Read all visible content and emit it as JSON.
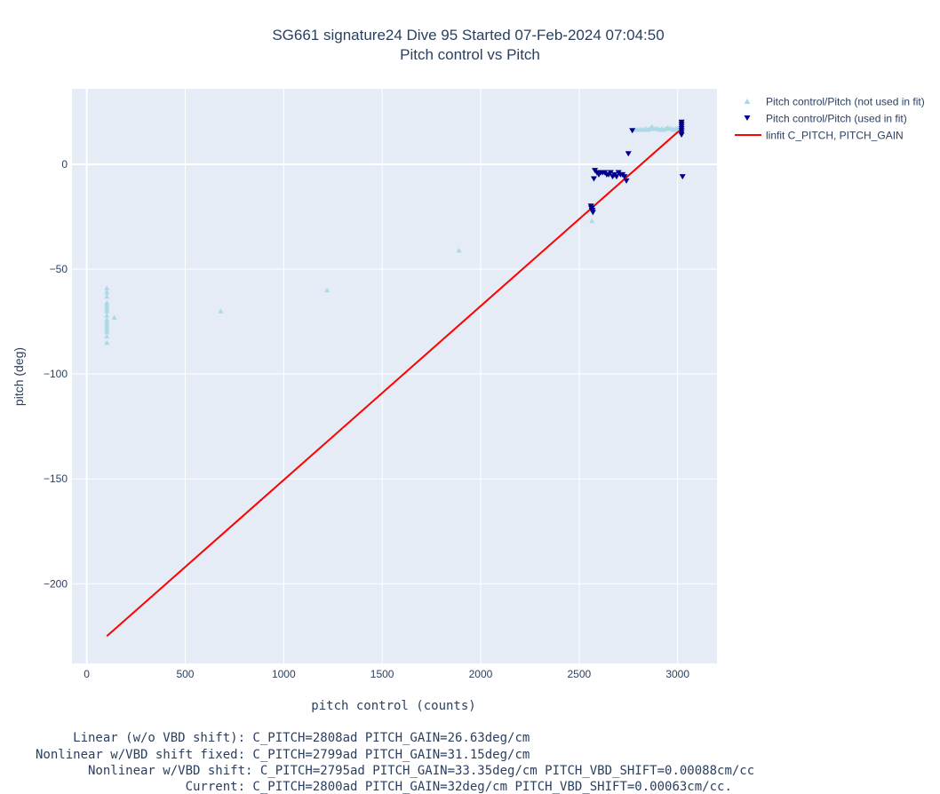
{
  "chart_data": {
    "type": "scatter",
    "title": [
      "SG661 signature24 Dive 95 Started 07-Feb-2024 07:04:50",
      "Pitch control vs Pitch"
    ],
    "xlabel": "pitch control (counts)",
    "ylabel": "pitch (deg)",
    "xlim": [
      -75,
      3200
    ],
    "ylim": [
      -238,
      36
    ],
    "xticks": [
      0,
      500,
      1000,
      1500,
      2000,
      2500,
      3000
    ],
    "yticks": [
      0,
      -50,
      -100,
      -150,
      -200
    ],
    "ytick_labels": [
      "0",
      "−50",
      "−100",
      "−150",
      "−200"
    ],
    "grid": true,
    "legend_position": "top-right",
    "colors": {
      "not_used": "#add8e6",
      "used": "#00008b",
      "fit": "#ff0000",
      "plot_bg": "#e5ecf6",
      "grid": "#ffffff",
      "text": "#2a3f5f"
    },
    "series": [
      {
        "name": "Pitch control/Pitch (not used in fit)",
        "marker": "triangle-up",
        "x": [
          102,
          102,
          102,
          102,
          102,
          102,
          102,
          102,
          102,
          102,
          102,
          102,
          102,
          102,
          102,
          102,
          102,
          102,
          140,
          680,
          1220,
          1890,
          2565,
          2775,
          2790,
          2800,
          2810,
          2820,
          2830,
          2840,
          2850,
          2860,
          2870,
          2880,
          2890,
          2900,
          2910,
          2920,
          2930,
          2940,
          2950,
          2960,
          2970,
          2980,
          2990,
          3000
        ],
        "y": [
          -59,
          -61,
          -63,
          -66,
          -67,
          -68,
          -69,
          -70,
          -72,
          -74,
          -75,
          -76,
          -77,
          -78,
          -79,
          -80,
          -82,
          -85,
          -73,
          -70,
          -60,
          -41,
          -27,
          16.5,
          16.5,
          16.5,
          16.5,
          16.5,
          16.5,
          17,
          16.5,
          17,
          18,
          17,
          17,
          17,
          16.5,
          17,
          16.5,
          17,
          17.5,
          17,
          17,
          16.5,
          17,
          17
        ]
      },
      {
        "name": "Pitch control/Pitch (used in fit)",
        "marker": "triangle-down",
        "x": [
          2560,
          2562,
          2565,
          2565,
          2568,
          2570,
          2575,
          2580,
          2590,
          2600,
          2610,
          2620,
          2630,
          2640,
          2650,
          2660,
          2670,
          2680,
          2690,
          2700,
          2710,
          2720,
          2730,
          2740,
          2750,
          2770,
          3020,
          3020,
          3020,
          3020,
          3020,
          3020,
          3020,
          3025
        ],
        "y": [
          -20,
          -21,
          -21,
          -22,
          -22,
          -23,
          -7,
          -3,
          -4,
          -5,
          -4,
          -4,
          -4,
          -5,
          -5,
          -4,
          -6,
          -5,
          -6,
          -4,
          -5,
          -5,
          -6,
          -8,
          5,
          16,
          20,
          19,
          18,
          17,
          16,
          15,
          14,
          -6
        ]
      },
      {
        "name": "linfit C_PITCH, PITCH_GAIN",
        "type": "line",
        "x": [
          102,
          3020
        ],
        "y": [
          -225,
          17
        ]
      }
    ]
  },
  "annotations": [
    "     Linear (w/o VBD shift): C_PITCH=2808ad PITCH_GAIN=26.63deg/cm",
    "Nonlinear w/VBD shift fixed: C_PITCH=2799ad PITCH_GAIN=31.15deg/cm",
    "       Nonlinear w/VBD shift: C_PITCH=2795ad PITCH_GAIN=33.35deg/cm PITCH_VBD_SHIFT=0.00088cm/cc",
    "                    Current: C_PITCH=2800ad PITCH_GAIN=32deg/cm PITCH_VBD_SHIFT=0.00063cm/cc."
  ]
}
